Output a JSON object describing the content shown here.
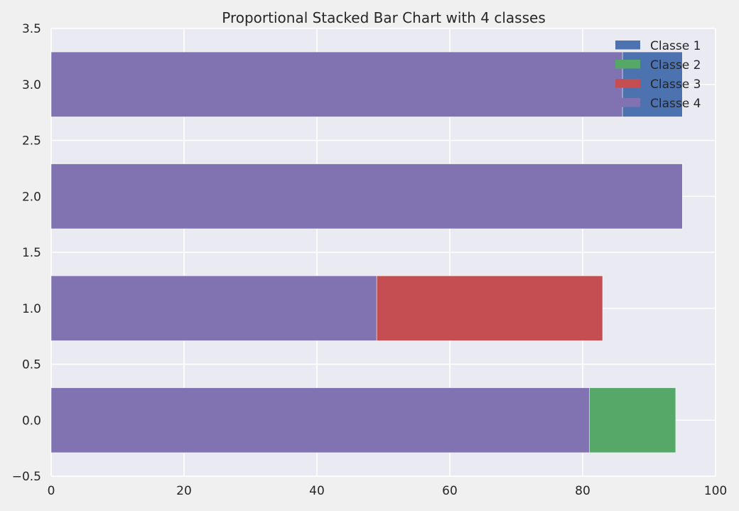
{
  "chart_data": {
    "type": "bar",
    "orientation": "horizontal",
    "stacked": true,
    "title": "Proportional Stacked Bar Chart with 4 classes",
    "xlabel": "",
    "ylabel": "",
    "xlim": [
      0,
      100
    ],
    "ylim": [
      -0.5,
      3.5
    ],
    "xticks": [
      "0",
      "20",
      "40",
      "60",
      "80",
      "100"
    ],
    "yticks": [
      "−0.5",
      "0.0",
      "0.5",
      "1.0",
      "1.5",
      "2.0",
      "2.5",
      "3.0",
      "3.5"
    ],
    "categories": [
      0,
      1,
      2,
      3
    ],
    "bar_height": 0.58,
    "grid": true,
    "legend": "top-right",
    "series": [
      {
        "name": "Classe 1",
        "color": "#4c72b0",
        "values": [
          0,
          0,
          0,
          9
        ]
      },
      {
        "name": "Classe 2",
        "color": "#55a868",
        "values": [
          13,
          0,
          0,
          0
        ]
      },
      {
        "name": "Classe 3",
        "color": "#c44e52",
        "values": [
          0,
          34,
          0,
          0
        ]
      },
      {
        "name": "Classe 4",
        "color": "#8172b2",
        "values": [
          81,
          49,
          95,
          86
        ]
      }
    ],
    "stack_order": [
      3,
      0,
      1,
      2
    ]
  }
}
